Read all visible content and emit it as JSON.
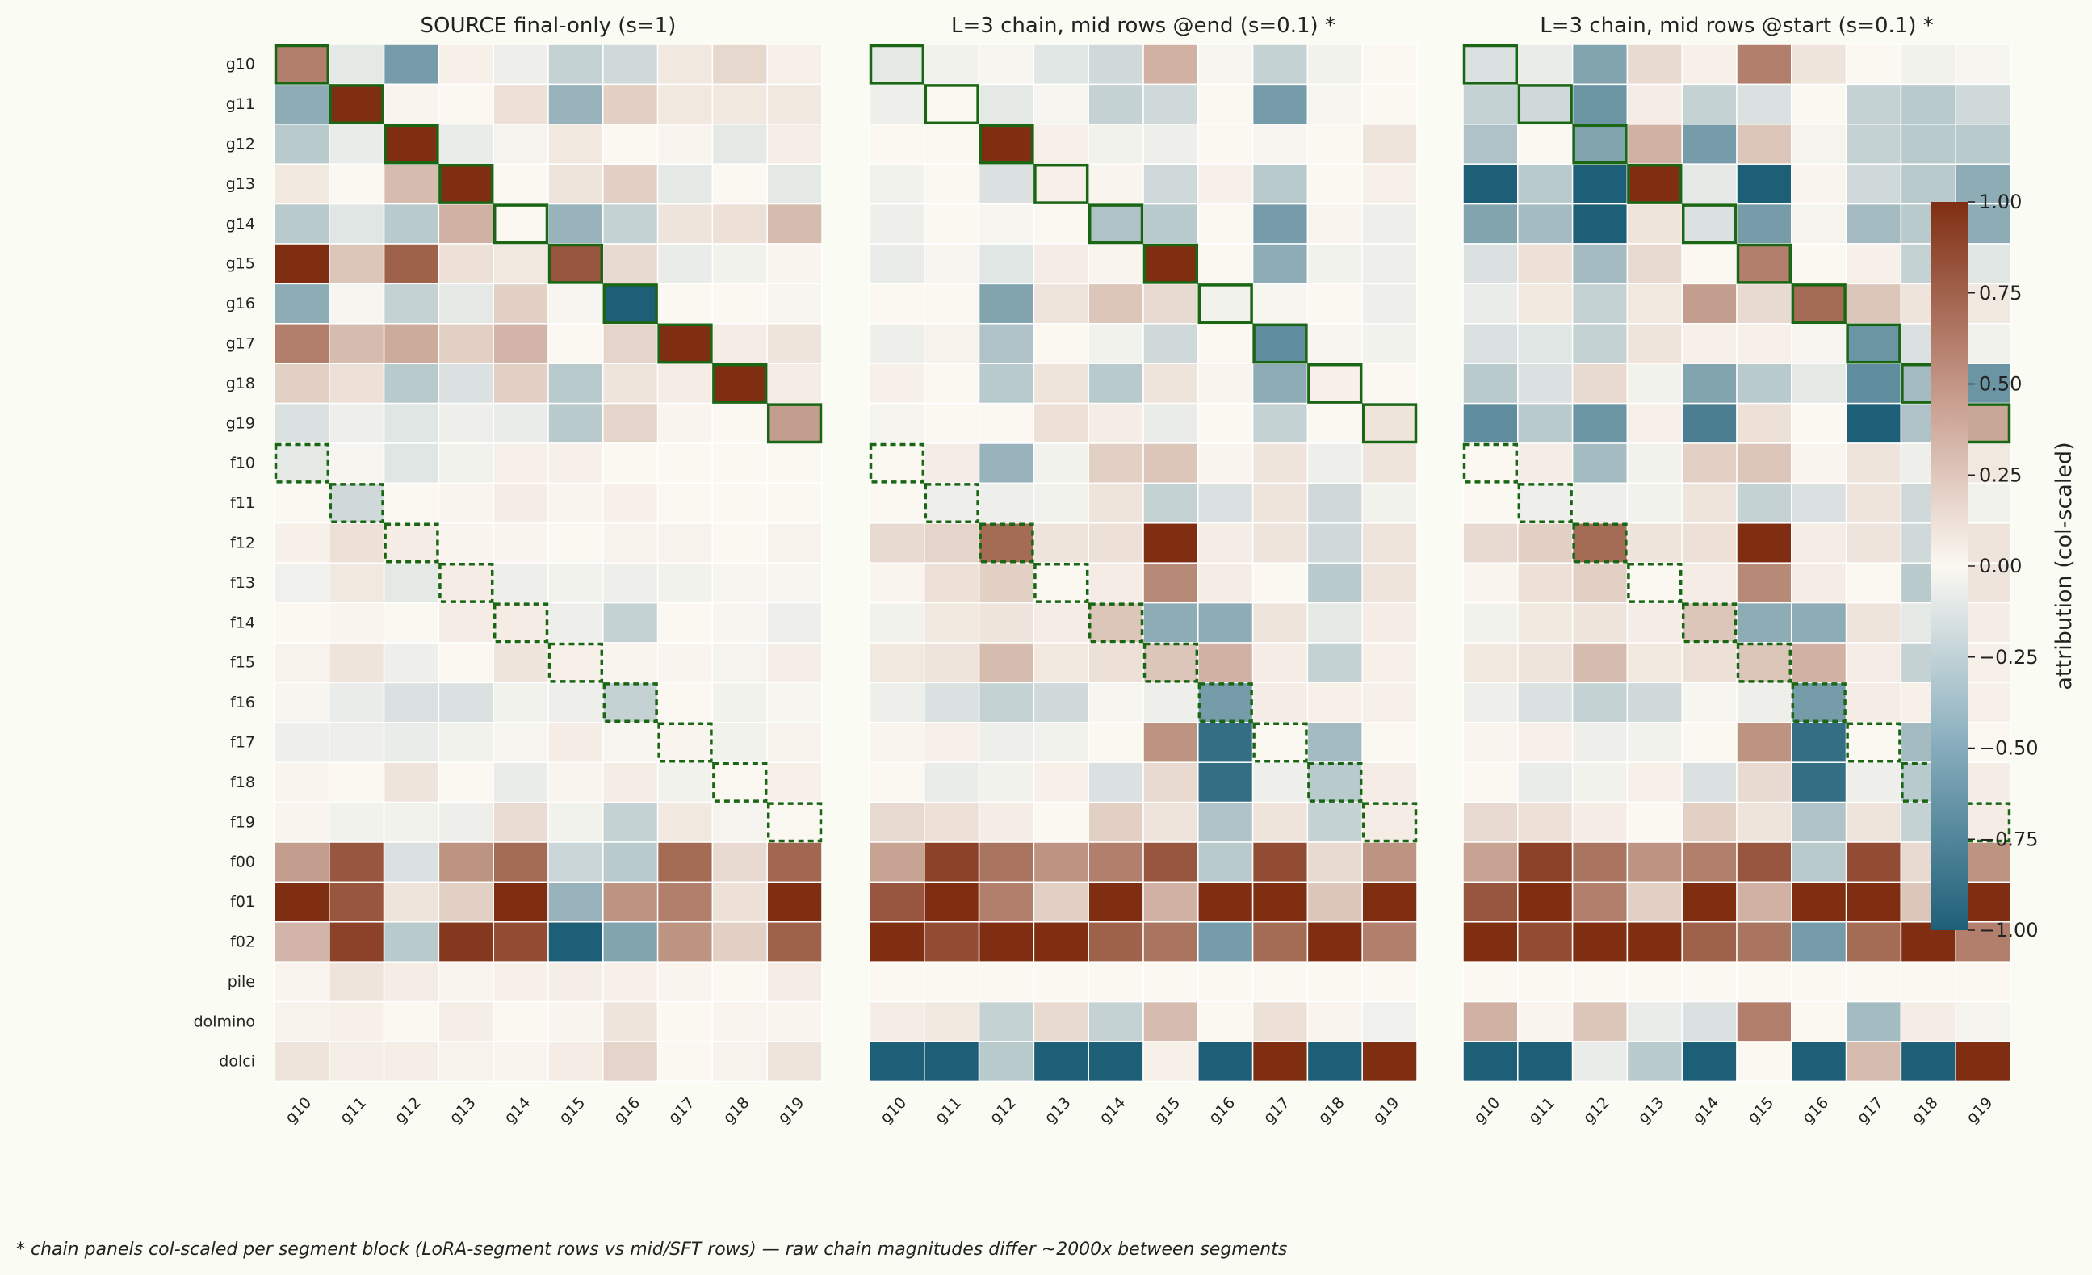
{
  "chart_data": {
    "type": "heatmap",
    "rows": [
      "g10",
      "g11",
      "g12",
      "g13",
      "g14",
      "g15",
      "g16",
      "g17",
      "g18",
      "g19",
      "f10",
      "f11",
      "f12",
      "f13",
      "f14",
      "f15",
      "f16",
      "f17",
      "f18",
      "f19",
      "f00",
      "f01",
      "f02",
      "pile",
      "dolmino",
      "dolci"
    ],
    "columns": [
      "g10",
      "g11",
      "g12",
      "g13",
      "g14",
      "g15",
      "g16",
      "g17",
      "g18",
      "g19"
    ],
    "colorbar": {
      "label": "attribution (col-scaled)",
      "range": [
        -1,
        1
      ],
      "ticks": [
        "1.00",
        "0.75",
        "0.50",
        "0.25",
        "0.00",
        "−0.25",
        "−0.50",
        "−0.75",
        "−1.00"
      ],
      "tick_values": [
        1,
        0.75,
        0.5,
        0.25,
        0,
        -0.25,
        -0.5,
        -0.75,
        -1
      ],
      "colors": {
        "positive": "#7f2e12",
        "neutral": "#fbf8f2",
        "negative": "#1e5f78"
      }
    },
    "highlight": {
      "solid_color": "#1a6614",
      "solid_rows": "g10-g19 diagonal",
      "dashed_rows": "f10-f19 diagonal"
    },
    "panels": [
      {
        "title": "SOURCE final-only (s=1)",
        "values": [
          [
            0.6,
            -0.1,
            -0.6,
            0.04,
            -0.06,
            -0.25,
            -0.2,
            0.08,
            0.16,
            0.04
          ],
          [
            -0.5,
            1.0,
            0.02,
            0.0,
            0.12,
            -0.45,
            0.2,
            0.08,
            0.08,
            0.08
          ],
          [
            -0.3,
            -0.08,
            1.0,
            -0.08,
            -0.03,
            0.08,
            0.0,
            0.02,
            -0.1,
            0.05
          ],
          [
            0.08,
            0.0,
            0.3,
            1.0,
            0.0,
            0.1,
            0.2,
            -0.1,
            0.0,
            -0.1
          ],
          [
            -0.3,
            -0.12,
            -0.3,
            0.35,
            0.0,
            -0.45,
            -0.25,
            0.1,
            0.12,
            0.3
          ],
          [
            1.0,
            0.25,
            0.75,
            0.12,
            0.08,
            0.8,
            0.15,
            -0.08,
            -0.04,
            0.02
          ],
          [
            -0.5,
            -0.02,
            -0.25,
            -0.1,
            0.2,
            -0.02,
            -1.0,
            0.0,
            0.0,
            -0.02
          ],
          [
            0.6,
            0.3,
            0.38,
            0.2,
            0.33,
            0.0,
            0.18,
            1.0,
            0.06,
            0.1
          ],
          [
            0.2,
            0.12,
            -0.3,
            -0.15,
            0.2,
            -0.3,
            0.1,
            0.06,
            1.0,
            0.06
          ],
          [
            -0.15,
            -0.06,
            -0.12,
            -0.06,
            -0.08,
            -0.3,
            0.18,
            0.02,
            0.0,
            0.45
          ],
          [
            -0.1,
            -0.02,
            -0.12,
            -0.04,
            0.04,
            0.04,
            0.0,
            0.0,
            0.0,
            0.0
          ],
          [
            0.0,
            -0.2,
            0.0,
            0.02,
            0.06,
            0.02,
            0.04,
            0.0,
            0.0,
            0.0
          ],
          [
            0.04,
            0.12,
            0.06,
            0.02,
            0.02,
            0.0,
            0.03,
            0.03,
            0.0,
            0.03
          ],
          [
            -0.05,
            0.08,
            -0.1,
            0.06,
            -0.06,
            -0.04,
            -0.06,
            -0.04,
            -0.02,
            -0.02
          ],
          [
            0.0,
            0.02,
            0.0,
            0.06,
            0.06,
            -0.06,
            -0.25,
            0.0,
            -0.02,
            -0.06
          ],
          [
            0.03,
            0.1,
            -0.06,
            0.0,
            0.1,
            0.04,
            0.02,
            0.02,
            -0.03,
            0.05
          ],
          [
            -0.02,
            -0.08,
            -0.15,
            -0.15,
            -0.04,
            -0.06,
            -0.25,
            0.0,
            -0.04,
            -0.02
          ],
          [
            -0.06,
            -0.06,
            -0.08,
            -0.04,
            -0.02,
            0.06,
            -0.02,
            0.02,
            -0.04,
            0.03
          ],
          [
            0.02,
            0.0,
            0.1,
            0.0,
            -0.08,
            0.02,
            0.06,
            -0.04,
            0.0,
            0.04
          ],
          [
            0.02,
            -0.04,
            -0.04,
            -0.06,
            0.14,
            -0.04,
            -0.25,
            0.08,
            -0.03,
            0.0
          ],
          [
            0.45,
            0.8,
            -0.15,
            0.5,
            0.7,
            -0.22,
            -0.3,
            0.7,
            0.15,
            0.72
          ],
          [
            1.0,
            0.8,
            0.1,
            0.2,
            1.0,
            -0.45,
            0.5,
            0.6,
            0.12,
            1.0
          ],
          [
            0.33,
            0.9,
            -0.3,
            0.95,
            0.85,
            -1.0,
            -0.55,
            0.5,
            0.2,
            0.75
          ],
          [
            0.02,
            0.1,
            0.06,
            0.02,
            0.04,
            0.05,
            0.04,
            0.02,
            0.0,
            0.06
          ],
          [
            0.03,
            0.04,
            0.0,
            0.05,
            0.0,
            0.02,
            0.1,
            0.0,
            0.02,
            0.02
          ],
          [
            0.1,
            0.05,
            0.05,
            0.03,
            0.02,
            0.06,
            0.18,
            0.0,
            0.03,
            0.1
          ]
        ]
      },
      {
        "title": "L=3 chain, mid rows @end (s=0.1) *",
        "values": [
          [
            -0.1,
            -0.04,
            -0.02,
            -0.12,
            -0.2,
            0.35,
            -0.02,
            -0.25,
            -0.04,
            0.0
          ],
          [
            -0.06,
            0.0,
            -0.1,
            -0.02,
            -0.25,
            -0.2,
            0.0,
            -0.6,
            -0.02,
            0.0
          ],
          [
            0.0,
            0.0,
            1.0,
            0.04,
            -0.04,
            -0.06,
            0.0,
            -0.02,
            0.0,
            0.1
          ],
          [
            -0.04,
            0.0,
            -0.15,
            0.04,
            0.02,
            -0.2,
            0.04,
            -0.3,
            0.0,
            0.04
          ],
          [
            -0.06,
            0.0,
            -0.02,
            0.0,
            -0.35,
            -0.3,
            0.0,
            -0.6,
            0.02,
            -0.06
          ],
          [
            -0.08,
            -0.02,
            -0.12,
            0.06,
            0.02,
            1.0,
            0.0,
            -0.5,
            -0.04,
            -0.06
          ],
          [
            0.0,
            0.0,
            -0.55,
            0.1,
            0.25,
            0.15,
            -0.04,
            -0.02,
            0.0,
            -0.06
          ],
          [
            -0.06,
            0.03,
            -0.35,
            0.0,
            -0.04,
            -0.2,
            0.0,
            -0.7,
            -0.02,
            -0.04
          ],
          [
            0.04,
            0.0,
            -0.3,
            0.1,
            -0.3,
            0.1,
            0.02,
            -0.5,
            0.04,
            0.0
          ],
          [
            -0.03,
            0.0,
            0.0,
            0.12,
            0.06,
            -0.08,
            0.0,
            -0.25,
            0.0,
            0.1
          ],
          [
            0.0,
            0.06,
            -0.45,
            -0.04,
            0.2,
            0.25,
            0.02,
            0.1,
            -0.06,
            0.1
          ],
          [
            0.0,
            -0.06,
            -0.06,
            -0.04,
            0.1,
            -0.25,
            -0.15,
            0.1,
            -0.2,
            -0.04
          ],
          [
            0.15,
            0.18,
            0.7,
            0.1,
            0.12,
            1.0,
            0.06,
            0.1,
            -0.2,
            0.1
          ],
          [
            0.02,
            0.12,
            0.2,
            0.0,
            0.06,
            0.55,
            0.06,
            0.0,
            -0.3,
            0.1
          ],
          [
            -0.04,
            0.08,
            0.1,
            0.06,
            0.25,
            -0.5,
            -0.5,
            0.1,
            -0.1,
            0.06
          ],
          [
            0.08,
            0.1,
            0.3,
            0.08,
            0.12,
            0.25,
            0.35,
            0.06,
            -0.25,
            0.04
          ],
          [
            -0.06,
            -0.15,
            -0.25,
            -0.2,
            -0.02,
            -0.06,
            -0.6,
            0.06,
            0.04,
            0.04
          ],
          [
            0.02,
            0.04,
            -0.06,
            -0.04,
            0.0,
            0.5,
            -0.9,
            0.0,
            -0.4,
            0.0
          ],
          [
            0.0,
            -0.08,
            -0.04,
            0.04,
            -0.15,
            0.15,
            -0.9,
            -0.06,
            -0.3,
            0.06
          ],
          [
            0.15,
            0.12,
            0.06,
            0.0,
            0.2,
            0.1,
            -0.35,
            0.1,
            -0.25,
            0.06
          ],
          [
            0.42,
            0.9,
            0.65,
            0.5,
            0.6,
            0.8,
            -0.3,
            0.85,
            0.15,
            0.5
          ],
          [
            0.8,
            1.0,
            0.6,
            0.2,
            1.0,
            0.35,
            1.0,
            1.0,
            0.25,
            1.0
          ],
          [
            1.0,
            0.85,
            1.0,
            1.0,
            0.75,
            0.65,
            -0.6,
            0.7,
            1.0,
            0.6
          ],
          [
            0.0,
            0.0,
            0.0,
            0.0,
            0.0,
            0.0,
            0.0,
            0.0,
            0.0,
            0.0
          ],
          [
            0.06,
            0.08,
            -0.25,
            0.15,
            -0.25,
            0.3,
            0.0,
            0.12,
            0.02,
            -0.05
          ],
          [
            -1.0,
            -1.0,
            -0.3,
            -1.0,
            -1.0,
            0.04,
            -1.0,
            1.0,
            -1.0,
            1.0
          ]
        ]
      },
      {
        "title": "L=3 chain, mid rows @start (s=0.1) *",
        "values": [
          [
            -0.15,
            -0.08,
            -0.55,
            0.15,
            0.04,
            0.6,
            0.1,
            0.0,
            -0.04,
            -0.02
          ],
          [
            -0.25,
            -0.2,
            -0.65,
            0.06,
            -0.25,
            -0.15,
            0.0,
            -0.25,
            -0.3,
            -0.2
          ],
          [
            -0.35,
            0.0,
            -0.55,
            0.35,
            -0.6,
            0.25,
            -0.03,
            -0.25,
            -0.3,
            -0.3
          ],
          [
            -1.0,
            -0.3,
            -1.0,
            1.0,
            -0.1,
            -1.0,
            0.02,
            -0.2,
            -0.3,
            -0.5
          ],
          [
            -0.55,
            -0.4,
            -1.0,
            0.1,
            -0.15,
            -0.6,
            -0.03,
            -0.4,
            -0.3,
            -0.5
          ],
          [
            -0.15,
            0.12,
            -0.4,
            0.15,
            0.0,
            0.6,
            0.0,
            0.04,
            -0.25,
            -0.12
          ],
          [
            -0.08,
            0.08,
            -0.25,
            0.08,
            0.45,
            0.15,
            0.7,
            0.25,
            0.1,
            0.08
          ],
          [
            -0.15,
            -0.12,
            -0.25,
            0.1,
            0.04,
            0.04,
            -0.02,
            -0.65,
            -0.15,
            -0.04
          ],
          [
            -0.3,
            -0.15,
            0.15,
            -0.04,
            -0.55,
            -0.3,
            -0.1,
            -0.7,
            -0.4,
            -0.65
          ],
          [
            -0.7,
            -0.3,
            -0.65,
            0.04,
            -0.8,
            0.12,
            0.0,
            -1.0,
            -0.35,
            0.4
          ],
          [
            0.0,
            0.06,
            -0.4,
            -0.04,
            0.2,
            0.25,
            0.02,
            0.1,
            -0.06,
            0.08
          ],
          [
            0.0,
            -0.06,
            -0.06,
            -0.04,
            0.1,
            -0.25,
            -0.15,
            0.1,
            -0.2,
            -0.04
          ],
          [
            0.15,
            0.2,
            0.7,
            0.1,
            0.12,
            1.0,
            0.06,
            0.1,
            -0.2,
            0.1
          ],
          [
            0.02,
            0.12,
            0.2,
            0.0,
            0.06,
            0.55,
            0.06,
            0.0,
            -0.3,
            0.1
          ],
          [
            -0.04,
            0.08,
            0.1,
            0.06,
            0.25,
            -0.5,
            -0.5,
            0.1,
            -0.1,
            0.06
          ],
          [
            0.08,
            0.1,
            0.3,
            0.08,
            0.12,
            0.25,
            0.35,
            0.06,
            -0.25,
            0.04
          ],
          [
            -0.06,
            -0.15,
            -0.25,
            -0.2,
            -0.02,
            -0.06,
            -0.6,
            0.06,
            0.04,
            0.04
          ],
          [
            0.02,
            0.04,
            -0.06,
            -0.04,
            0.0,
            0.5,
            -0.9,
            0.0,
            -0.4,
            0.0
          ],
          [
            0.0,
            -0.08,
            -0.04,
            0.04,
            -0.15,
            0.15,
            -0.9,
            -0.06,
            -0.3,
            0.06
          ],
          [
            0.15,
            0.12,
            0.06,
            0.0,
            0.2,
            0.1,
            -0.35,
            0.1,
            -0.25,
            0.06
          ],
          [
            0.42,
            0.9,
            0.65,
            0.5,
            0.6,
            0.8,
            -0.3,
            0.85,
            0.15,
            0.5
          ],
          [
            0.8,
            1.0,
            0.6,
            0.2,
            1.0,
            0.35,
            1.0,
            1.0,
            0.25,
            1.0
          ],
          [
            1.0,
            0.85,
            1.0,
            1.0,
            0.75,
            0.65,
            -0.6,
            0.7,
            1.0,
            0.6
          ],
          [
            0.0,
            0.0,
            0.0,
            0.0,
            0.0,
            0.0,
            0.0,
            0.0,
            0.0,
            0.0
          ],
          [
            0.35,
            0.02,
            0.25,
            -0.08,
            -0.15,
            0.6,
            0.0,
            -0.4,
            0.06,
            -0.03
          ],
          [
            -1.0,
            -1.0,
            -0.08,
            -0.3,
            -1.0,
            0.0,
            -1.0,
            0.3,
            -1.0,
            1.0
          ]
        ]
      }
    ],
    "footnote": "* chain panels col-scaled per segment block (LoRA-segment rows vs mid/SFT rows) — raw chain magnitudes differ ~2000x between segments"
  }
}
